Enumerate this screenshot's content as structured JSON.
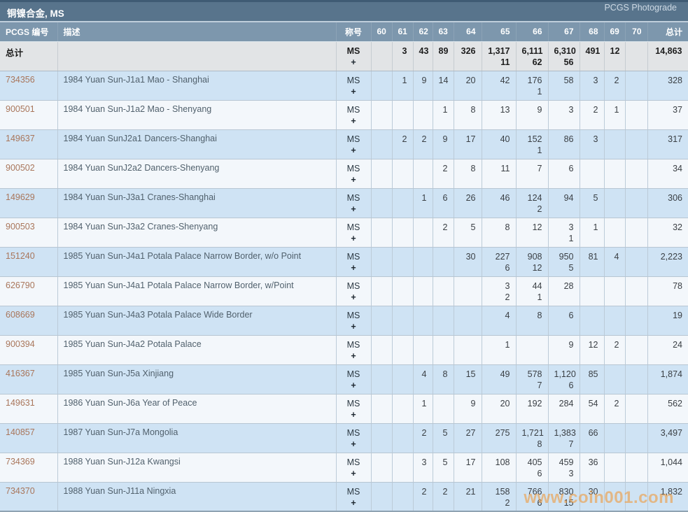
{
  "header": {
    "title": "铜镍合金, MS",
    "photograde_label": "PCGS Photograde"
  },
  "table": {
    "columns": {
      "pcgs_no": "PCGS 编号",
      "description": "描述",
      "designation": "称号",
      "grades": [
        "60",
        "61",
        "62",
        "63",
        "64",
        "65",
        "66",
        "67",
        "68",
        "69",
        "70"
      ],
      "total": "总计"
    },
    "designation": {
      "line1": "MS",
      "line2": "+"
    },
    "totals": {
      "label": "总计",
      "grades": [
        [
          "",
          ""
        ],
        [
          "3",
          ""
        ],
        [
          "43",
          ""
        ],
        [
          "89",
          ""
        ],
        [
          "326",
          ""
        ],
        [
          "1,317",
          "11"
        ],
        [
          "6,111",
          "62"
        ],
        [
          "6,310",
          "56"
        ],
        [
          "491",
          ""
        ],
        [
          "12",
          ""
        ],
        [
          "",
          ""
        ]
      ],
      "total": "14,863"
    },
    "rows": [
      {
        "pcgs_no": "734356",
        "description": "1984 Yuan Sun-J1a1 Mao - Shanghai",
        "grades": [
          [
            "",
            ""
          ],
          [
            "1",
            ""
          ],
          [
            "9",
            ""
          ],
          [
            "14",
            ""
          ],
          [
            "20",
            ""
          ],
          [
            "42",
            ""
          ],
          [
            "176",
            "1"
          ],
          [
            "58",
            ""
          ],
          [
            "3",
            ""
          ],
          [
            "2",
            ""
          ],
          [
            "",
            ""
          ]
        ],
        "total": "328"
      },
      {
        "pcgs_no": "900501",
        "description": "1984 Yuan Sun-J1a2 Mao - Shenyang",
        "grades": [
          [
            "",
            ""
          ],
          [
            "",
            ""
          ],
          [
            "",
            ""
          ],
          [
            "1",
            ""
          ],
          [
            "8",
            ""
          ],
          [
            "13",
            ""
          ],
          [
            "9",
            ""
          ],
          [
            "3",
            ""
          ],
          [
            "2",
            ""
          ],
          [
            "1",
            ""
          ],
          [
            "",
            ""
          ]
        ],
        "total": "37"
      },
      {
        "pcgs_no": "149637",
        "description": "1984 Yuan SunJ2a1 Dancers-Shanghai",
        "grades": [
          [
            "",
            ""
          ],
          [
            "2",
            ""
          ],
          [
            "2",
            ""
          ],
          [
            "9",
            ""
          ],
          [
            "17",
            ""
          ],
          [
            "40",
            ""
          ],
          [
            "152",
            "1"
          ],
          [
            "86",
            ""
          ],
          [
            "3",
            ""
          ],
          [
            "",
            ""
          ],
          [
            "",
            ""
          ]
        ],
        "total": "317"
      },
      {
        "pcgs_no": "900502",
        "description": "1984 Yuan SunJ2a2 Dancers-Shenyang",
        "grades": [
          [
            "",
            ""
          ],
          [
            "",
            ""
          ],
          [
            "",
            ""
          ],
          [
            "2",
            ""
          ],
          [
            "8",
            ""
          ],
          [
            "11",
            ""
          ],
          [
            "7",
            ""
          ],
          [
            "6",
            ""
          ],
          [
            "",
            ""
          ],
          [
            "",
            ""
          ],
          [
            "",
            ""
          ]
        ],
        "total": "34"
      },
      {
        "pcgs_no": "149629",
        "description": "1984 Yuan Sun-J3a1 Cranes-Shanghai",
        "grades": [
          [
            "",
            ""
          ],
          [
            "",
            ""
          ],
          [
            "1",
            ""
          ],
          [
            "6",
            ""
          ],
          [
            "26",
            ""
          ],
          [
            "46",
            ""
          ],
          [
            "124",
            "2"
          ],
          [
            "94",
            ""
          ],
          [
            "5",
            ""
          ],
          [
            "",
            ""
          ],
          [
            "",
            ""
          ]
        ],
        "total": "306"
      },
      {
        "pcgs_no": "900503",
        "description": "1984 Yuan Sun-J3a2 Cranes-Shenyang",
        "grades": [
          [
            "",
            ""
          ],
          [
            "",
            ""
          ],
          [
            "",
            ""
          ],
          [
            "2",
            ""
          ],
          [
            "5",
            ""
          ],
          [
            "8",
            ""
          ],
          [
            "12",
            ""
          ],
          [
            "3",
            "1"
          ],
          [
            "1",
            ""
          ],
          [
            "",
            ""
          ],
          [
            "",
            ""
          ]
        ],
        "total": "32"
      },
      {
        "pcgs_no": "151240",
        "description": "1985 Yuan Sun-J4a1 Potala Palace Narrow Border, w/o Point",
        "grades": [
          [
            "",
            ""
          ],
          [
            "",
            ""
          ],
          [
            "",
            ""
          ],
          [
            "",
            ""
          ],
          [
            "30",
            ""
          ],
          [
            "227",
            "6"
          ],
          [
            "908",
            "12"
          ],
          [
            "950",
            "5"
          ],
          [
            "81",
            ""
          ],
          [
            "4",
            ""
          ],
          [
            "",
            ""
          ]
        ],
        "total": "2,223"
      },
      {
        "pcgs_no": "626790",
        "description": "1985 Yuan Sun-J4a1 Potala Palace Narrow Border, w/Point",
        "grades": [
          [
            "",
            ""
          ],
          [
            "",
            ""
          ],
          [
            "",
            ""
          ],
          [
            "",
            ""
          ],
          [
            "",
            ""
          ],
          [
            "3",
            "2"
          ],
          [
            "44",
            "1"
          ],
          [
            "28",
            ""
          ],
          [
            "",
            ""
          ],
          [
            "",
            ""
          ],
          [
            "",
            ""
          ]
        ],
        "total": "78"
      },
      {
        "pcgs_no": "608669",
        "description": "1985 Yuan Sun-J4a3 Potala Palace Wide Border",
        "grades": [
          [
            "",
            ""
          ],
          [
            "",
            ""
          ],
          [
            "",
            ""
          ],
          [
            "",
            ""
          ],
          [
            "",
            ""
          ],
          [
            "4",
            ""
          ],
          [
            "8",
            ""
          ],
          [
            "6",
            ""
          ],
          [
            "",
            ""
          ],
          [
            "",
            ""
          ],
          [
            "",
            ""
          ]
        ],
        "total": "19"
      },
      {
        "pcgs_no": "900394",
        "description": "1985 Yuan Sun-J4a2 Potala Palace",
        "grades": [
          [
            "",
            ""
          ],
          [
            "",
            ""
          ],
          [
            "",
            ""
          ],
          [
            "",
            ""
          ],
          [
            "",
            ""
          ],
          [
            "1",
            ""
          ],
          [
            "",
            ""
          ],
          [
            "9",
            ""
          ],
          [
            "12",
            ""
          ],
          [
            "2",
            ""
          ],
          [
            "",
            ""
          ]
        ],
        "total": "24"
      },
      {
        "pcgs_no": "416367",
        "description": "1985 Yuan Sun-J5a Xinjiang",
        "grades": [
          [
            "",
            ""
          ],
          [
            "",
            ""
          ],
          [
            "4",
            ""
          ],
          [
            "8",
            ""
          ],
          [
            "15",
            ""
          ],
          [
            "49",
            ""
          ],
          [
            "578",
            "7"
          ],
          [
            "1,120",
            "6"
          ],
          [
            "85",
            ""
          ],
          [
            "",
            ""
          ],
          [
            "",
            ""
          ]
        ],
        "total": "1,874"
      },
      {
        "pcgs_no": "149631",
        "description": "1986 Yuan Sun-J6a Year of Peace",
        "grades": [
          [
            "",
            ""
          ],
          [
            "",
            ""
          ],
          [
            "1",
            ""
          ],
          [
            "",
            ""
          ],
          [
            "9",
            ""
          ],
          [
            "20",
            ""
          ],
          [
            "192",
            ""
          ],
          [
            "284",
            ""
          ],
          [
            "54",
            ""
          ],
          [
            "2",
            ""
          ],
          [
            "",
            ""
          ]
        ],
        "total": "562"
      },
      {
        "pcgs_no": "140857",
        "description": "1987 Yuan Sun-J7a Mongolia",
        "grades": [
          [
            "",
            ""
          ],
          [
            "",
            ""
          ],
          [
            "2",
            ""
          ],
          [
            "5",
            ""
          ],
          [
            "27",
            ""
          ],
          [
            "275",
            ""
          ],
          [
            "1,721",
            "8"
          ],
          [
            "1,383",
            "7"
          ],
          [
            "66",
            ""
          ],
          [
            "",
            ""
          ],
          [
            "",
            ""
          ]
        ],
        "total": "3,497"
      },
      {
        "pcgs_no": "734369",
        "description": "1988 Yuan Sun-J12a Kwangsi",
        "grades": [
          [
            "",
            ""
          ],
          [
            "",
            ""
          ],
          [
            "3",
            ""
          ],
          [
            "5",
            ""
          ],
          [
            "17",
            ""
          ],
          [
            "108",
            ""
          ],
          [
            "405",
            "6"
          ],
          [
            "459",
            "3"
          ],
          [
            "36",
            ""
          ],
          [
            "",
            ""
          ],
          [
            "",
            ""
          ]
        ],
        "total": "1,044"
      },
      {
        "pcgs_no": "734370",
        "description": "1988 Yuan Sun-J11a Ningxia",
        "grades": [
          [
            "",
            ""
          ],
          [
            "",
            ""
          ],
          [
            "2",
            ""
          ],
          [
            "2",
            ""
          ],
          [
            "21",
            ""
          ],
          [
            "158",
            "2"
          ],
          [
            "766",
            "6"
          ],
          [
            "830",
            "15"
          ],
          [
            "30",
            ""
          ],
          [
            "",
            ""
          ],
          [
            "",
            ""
          ]
        ],
        "total": "1,832"
      }
    ]
  },
  "watermark": "www.coin001.com",
  "colors": {
    "titlebar_bg": "#58748c",
    "header_bg": "#7d97ad",
    "totals_bg": "#e2e4e6",
    "row_blue": "#cfe3f4",
    "row_white": "#f3f7fb",
    "pcgs_number": "#a9765b",
    "watermark_orange": "#ef9d43"
  }
}
